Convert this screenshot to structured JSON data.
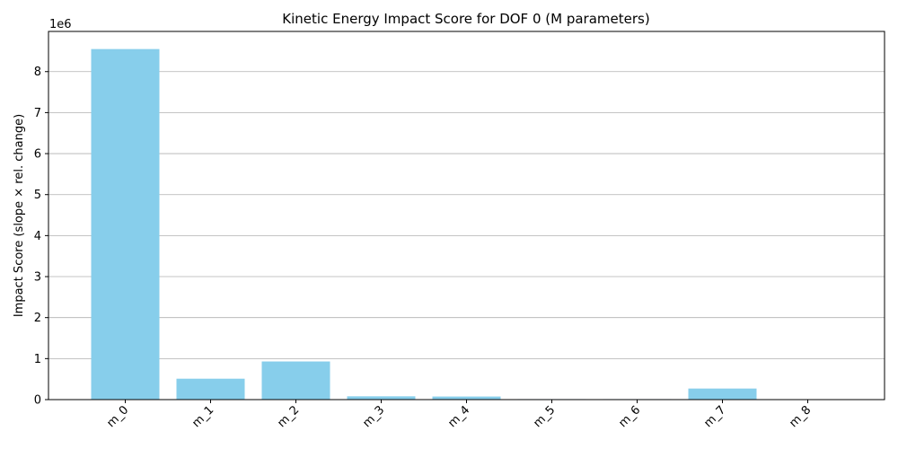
{
  "chart_data": {
    "type": "bar",
    "title": "Kinetic Energy Impact Score for DOF 0 (M parameters)",
    "xlabel": "",
    "ylabel": "Impact Score (slope × rel. change)",
    "scale_note": "1e6",
    "categories": [
      "m_0",
      "m_1",
      "m_2",
      "m_3",
      "m_4",
      "m_5",
      "m_6",
      "m_7",
      "m_8"
    ],
    "values": [
      8550000,
      510000,
      930000,
      80000,
      75000,
      12000,
      12000,
      270000,
      3000
    ],
    "ylim": [
      0,
      8980000
    ],
    "yticks": [
      0,
      1000000,
      2000000,
      3000000,
      4000000,
      5000000,
      6000000,
      7000000,
      8000000
    ],
    "ytick_labels": [
      "0",
      "1",
      "2",
      "3",
      "4",
      "5",
      "6",
      "7",
      "8"
    ],
    "grid": "y",
    "bar_color": "#87CEEB"
  }
}
